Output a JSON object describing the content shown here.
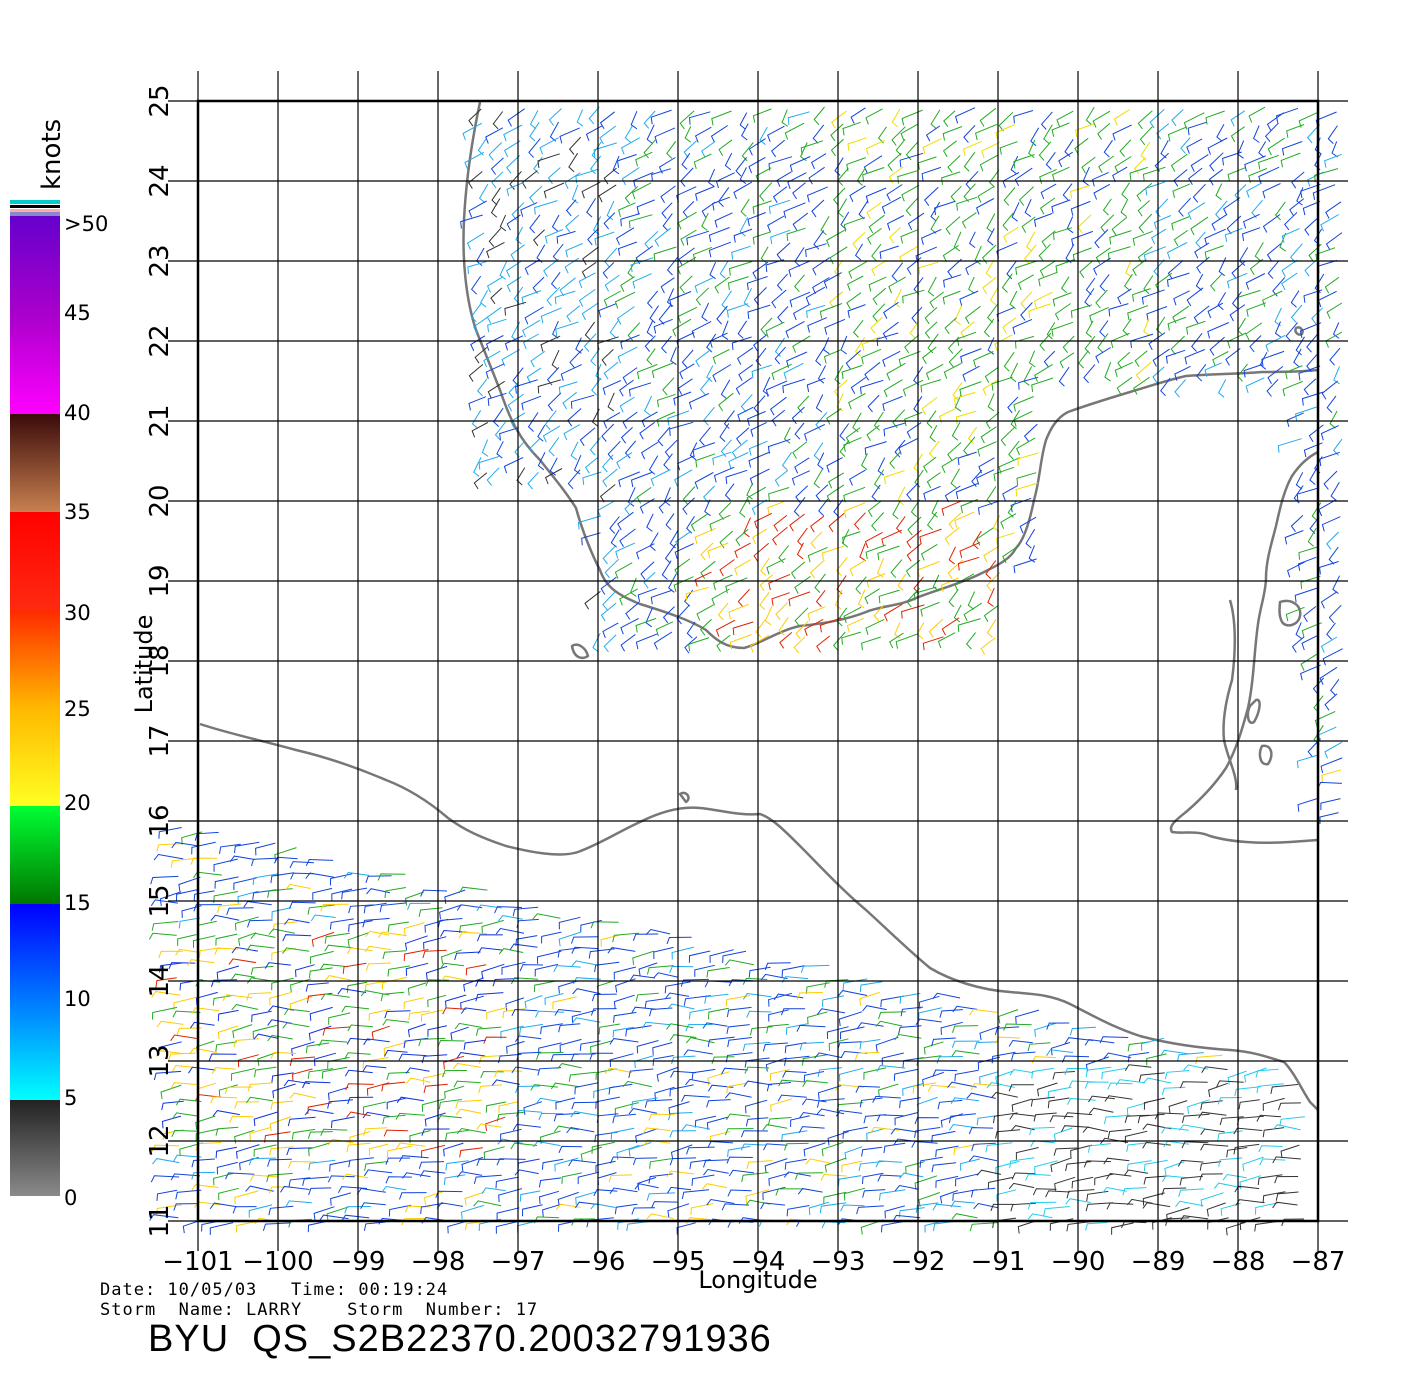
{
  "map": {
    "x_axis_label": "Longitude",
    "y_axis_label": "Latitude",
    "longitude_ticks": [
      "−101",
      "−100",
      "−99",
      "−98",
      "−97",
      "−96",
      "−95",
      "−94",
      "−93",
      "−92",
      "−91",
      "−90",
      "−89",
      "−88",
      "−87"
    ],
    "latitude_ticks": [
      "11",
      "12",
      "13",
      "14",
      "15",
      "16",
      "17",
      "18",
      "19",
      "20",
      "21",
      "22",
      "23",
      "24",
      "25"
    ],
    "lon_range": [
      -101,
      -87
    ],
    "lat_range": [
      11,
      25
    ],
    "coastline_color": "#777777",
    "grid_color": "#000000"
  },
  "color_scale": {
    "units": "knots",
    "labels": [
      ">50",
      "45",
      "40",
      "35",
      "30",
      "25",
      "20",
      "15",
      "10",
      "5",
      "0"
    ],
    "bands": [
      {
        "from": 0,
        "to": 5,
        "colors": [
          "#8a8a8a",
          "#222222"
        ]
      },
      {
        "from": 5,
        "to": 15,
        "colors": [
          "#00ffff",
          "#0000ff"
        ]
      },
      {
        "from": 15,
        "to": 20,
        "colors": [
          "#007700",
          "#00ff33"
        ]
      },
      {
        "from": 20,
        "to": 30,
        "colors": [
          "#ffff22",
          "#ff2a00"
        ]
      },
      {
        "from": 30,
        "to": 35,
        "colors": [
          "#ff2222",
          "#ff0000"
        ]
      },
      {
        "from": 35,
        "to": 40,
        "colors": [
          "#c88050",
          "#3a0a0a"
        ]
      },
      {
        "from": 40,
        "to": 50,
        "colors": [
          "#ff00ff",
          "#6600cc"
        ]
      }
    ],
    "top_stripe_colors": [
      "#00cccc",
      "#000000",
      "#ffaaaa"
    ]
  },
  "info": {
    "date_line": "Date: 10/05/03   Time: 00:19:24",
    "storm_line": "Storm  Name: LARRY    Storm  Number: 17",
    "title": "BYU  QS_S2B22370.20032791936"
  }
}
